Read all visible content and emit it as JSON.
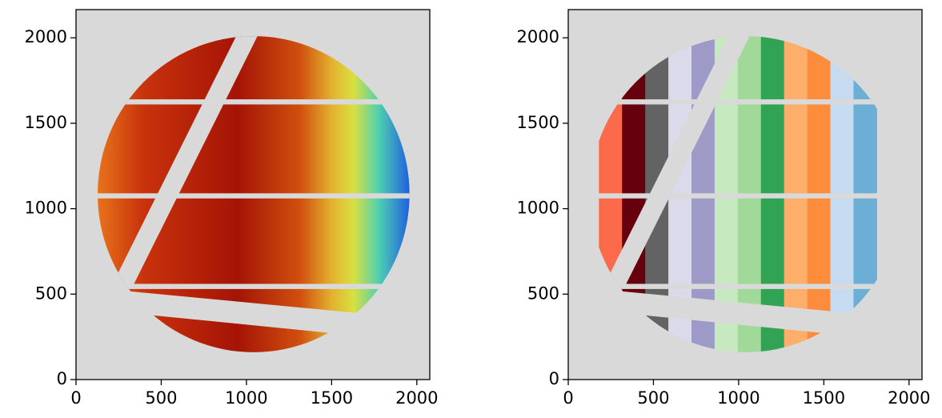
{
  "chart_data": [
    {
      "type": "image",
      "xlim": [
        0,
        2076
      ],
      "ylim": [
        0,
        2165
      ],
      "xticks": [
        0,
        500,
        1000,
        1500,
        2000
      ],
      "yticks": [
        0,
        500,
        1000,
        1500,
        2000
      ]
    },
    {
      "type": "image",
      "xlim": [
        0,
        2076
      ],
      "ylim": [
        0,
        2165
      ],
      "xticks": [
        0,
        500,
        1000,
        1500,
        2000
      ],
      "yticks": [
        0,
        500,
        1000,
        1500,
        2000
      ]
    }
  ]
}
